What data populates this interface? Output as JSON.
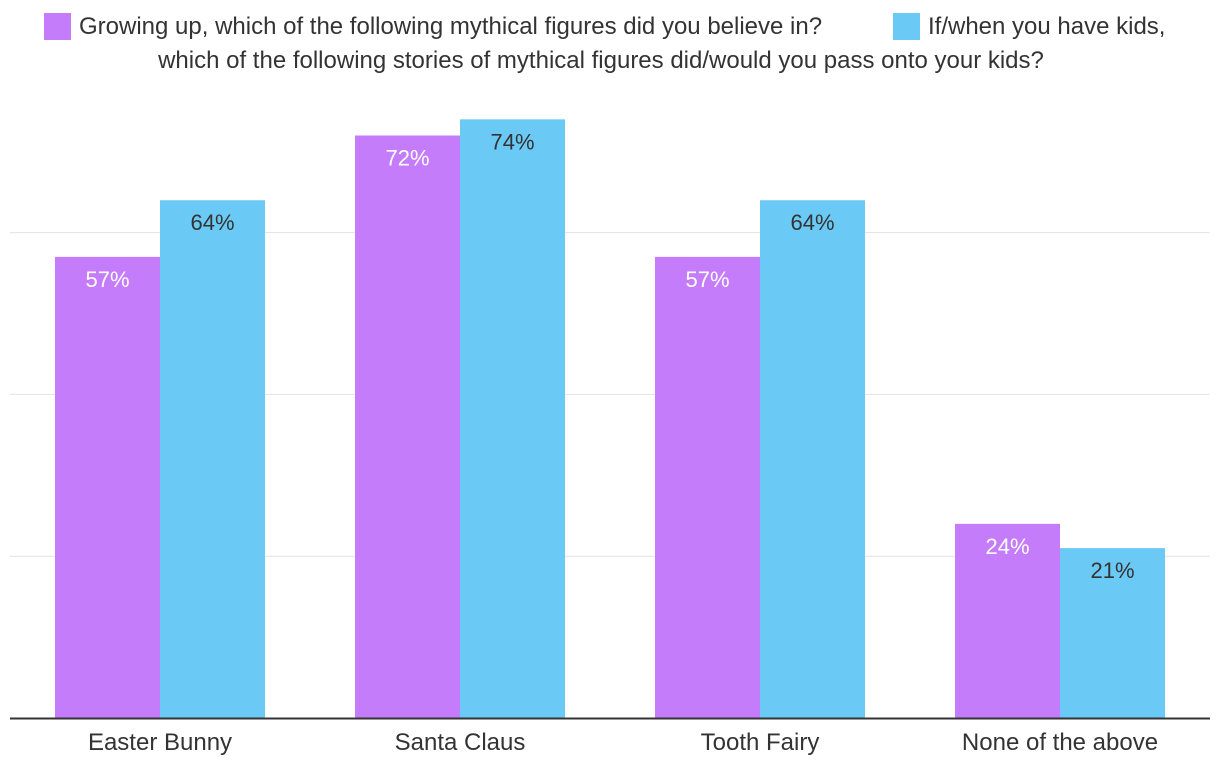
{
  "chart_data": {
    "type": "bar",
    "categories": [
      "Easter Bunny",
      "Santa Claus",
      "Tooth Fairy",
      "None of the above"
    ],
    "series": [
      {
        "name": "Growing up, which of the following mythical figures did you believe in?",
        "color": "#c47cfb",
        "label_color": "#ffffff",
        "values": [
          57,
          72,
          57,
          24
        ],
        "value_labels": [
          "57%",
          "72%",
          "57%",
          "24%"
        ]
      },
      {
        "name": "If/when you have kids, which of the following stories of mythical figures did/would you pass onto your kids?",
        "color": "#6bc9f5",
        "label_color": "#333333",
        "values": [
          64,
          74,
          64,
          21
        ],
        "value_labels": [
          "64%",
          "74%",
          "64%",
          "21%"
        ]
      }
    ],
    "legend": {
      "position": "top",
      "line1_tail": "If/when you have kids,",
      "line2": "which of the following stories of mythical figures did/would you pass onto your kids?"
    },
    "ylim": [
      0,
      80
    ],
    "y_gridlines": [
      20,
      40,
      60
    ],
    "grid": true,
    "y_tick_labels_visible": false
  }
}
